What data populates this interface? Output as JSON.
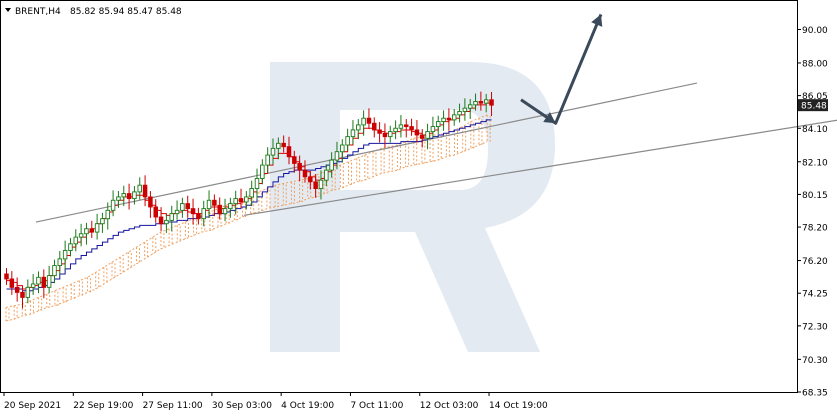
{
  "header": {
    "symbol_label": "BRENT,H4",
    "ohlc": "85.82 85.94 85.47 85.48"
  },
  "colors": {
    "bull_candle": "#1a7a1a",
    "bear_candle": "#cc0000",
    "tenkan": "#dd0000",
    "kijun": "#1414a0",
    "cloud": "#f0a060",
    "channel": "#8a8a8a",
    "forecast_arrow": "#3a4a5a",
    "price_badge": "#222222",
    "watermark": "#dfe6f0"
  },
  "chart_data": {
    "type": "candlestick",
    "price_axis": {
      "min": 68.35,
      "max": 91.7,
      "ticks": [
        "68.35",
        "70.30",
        "72.30",
        "74.25",
        "76.20",
        "78.20",
        "80.15",
        "82.10",
        "84.10",
        "86.05",
        "88.00",
        "90.00"
      ],
      "current_price": "85.48"
    },
    "time_axis": {
      "labels": [
        "20 Sep 2021",
        "22 Sep 19:00",
        "27 Sep 11:00",
        "30 Sep 03:00",
        "4 Oct 19:00",
        "7 Oct 11:00",
        "12 Oct 03:00",
        "14 Oct 19:00"
      ],
      "label_bars": [
        0,
        13,
        26,
        39,
        52,
        65,
        78,
        91
      ],
      "total_bars": 140
    },
    "close": [
      75.1,
      74.6,
      74.3,
      74.0,
      74.6,
      74.8,
      75.2,
      74.6,
      75.3,
      75.9,
      76.3,
      76.8,
      77.2,
      77.6,
      77.8,
      78.1,
      77.9,
      78.4,
      78.7,
      79.2,
      79.8,
      80.0,
      80.2,
      79.9,
      80.3,
      80.7,
      80.0,
      79.4,
      78.8,
      78.4,
      78.6,
      79.0,
      79.2,
      79.6,
      79.3,
      79.0,
      78.7,
      79.3,
      79.8,
      79.5,
      79.0,
      79.3,
      79.6,
      79.9,
      79.7,
      80.0,
      80.5,
      81.1,
      81.9,
      82.5,
      82.9,
      83.2,
      83.0,
      82.4,
      82.0,
      81.6,
      81.2,
      80.9,
      80.5,
      81.0,
      81.6,
      82.2,
      82.7,
      83.1,
      83.6,
      84.0,
      84.3,
      84.7,
      84.4,
      84.0,
      83.8,
      83.6,
      83.9,
      84.1,
      84.3,
      84.2,
      84.0,
      83.7,
      83.5,
      83.9,
      84.2,
      84.5,
      84.7,
      84.6,
      84.9,
      85.1,
      85.3,
      85.5,
      85.7,
      85.6,
      85.8,
      85.48
    ],
    "tenkan": [
      75.0,
      74.9,
      74.7,
      74.5,
      74.6,
      74.7,
      74.9,
      75.0,
      75.3,
      75.6,
      76.0,
      76.5,
      77.0,
      77.3,
      77.6,
      77.9,
      78.1,
      78.4,
      78.7,
      79.1,
      79.5,
      79.8,
      80.0,
      80.0,
      80.1,
      80.1,
      79.8,
      79.5,
      79.2,
      79.0,
      78.9,
      79.0,
      79.1,
      79.2,
      79.1,
      79.0,
      79.0,
      79.2,
      79.4,
      79.4,
      79.3,
      79.4,
      79.5,
      79.6,
      79.7,
      79.9,
      80.3,
      80.8,
      81.4,
      81.9,
      82.3,
      82.6,
      82.6,
      82.4,
      82.1,
      81.8,
      81.5,
      81.2,
      81.0,
      81.1,
      81.5,
      81.9,
      82.3,
      82.7,
      83.1,
      83.5,
      83.8,
      84.1,
      84.1,
      84.0,
      83.9,
      83.8,
      83.8,
      83.9,
      84.0,
      84.0,
      83.9,
      83.8,
      83.7,
      83.8,
      84.0,
      84.3,
      84.5,
      84.6,
      84.7,
      84.9,
      85.1,
      85.3,
      85.5,
      85.5,
      85.6,
      85.5
    ],
    "kijun": [
      74.5,
      74.5,
      74.5,
      74.4,
      74.4,
      74.5,
      74.6,
      74.7,
      74.9,
      75.1,
      75.4,
      75.7,
      76.0,
      76.3,
      76.5,
      76.7,
      76.9,
      77.1,
      77.3,
      77.5,
      77.7,
      77.9,
      78.0,
      78.1,
      78.2,
      78.3,
      78.3,
      78.3,
      78.4,
      78.4,
      78.5,
      78.5,
      78.6,
      78.6,
      78.7,
      78.7,
      78.8,
      78.8,
      78.9,
      79.0,
      79.0,
      79.1,
      79.2,
      79.3,
      79.4,
      79.5,
      79.7,
      80.0,
      80.3,
      80.6,
      80.9,
      81.2,
      81.4,
      81.5,
      81.6,
      81.6,
      81.6,
      81.6,
      81.7,
      81.8,
      81.9,
      82.0,
      82.1,
      82.3,
      82.5,
      82.7,
      82.9,
      83.1,
      83.2,
      83.2,
      83.2,
      83.2,
      83.2,
      83.2,
      83.3,
      83.3,
      83.3,
      83.3,
      83.4,
      83.5,
      83.6,
      83.7,
      83.8,
      83.9,
      84.0,
      84.1,
      84.2,
      84.3,
      84.4,
      84.5,
      84.6,
      84.6
    ],
    "cloud_top": [
      73.4,
      73.5,
      73.6,
      73.8,
      74.0,
      74.2,
      74.4,
      74.6,
      74.8,
      75.0,
      75.2,
      75.5,
      75.8,
      76.1,
      76.4,
      76.7,
      77.0,
      77.3,
      77.6,
      77.9,
      78.1,
      78.3,
      78.5,
      78.7,
      78.9,
      79.1,
      79.3,
      79.5,
      79.7,
      79.9,
      80.1,
      80.3,
      80.5,
      80.7,
      80.8,
      80.9,
      81.0,
      81.1,
      81.3,
      81.5,
      81.7,
      81.9,
      82.1,
      82.3,
      82.5,
      82.7,
      82.9,
      83.0,
      83.1,
      83.3,
      83.5,
      83.6,
      83.7,
      83.7,
      83.8,
      84.0,
      84.2,
      84.5,
      84.7,
      84.9
    ],
    "cloud_bottom": [
      72.6,
      72.7,
      72.9,
      73.0,
      73.2,
      73.4,
      73.5,
      73.7,
      73.9,
      74.1,
      74.3,
      74.5,
      74.8,
      75.1,
      75.4,
      75.7,
      76.0,
      76.3,
      76.6,
      76.9,
      77.1,
      77.3,
      77.5,
      77.7,
      77.9,
      78.0,
      78.2,
      78.4,
      78.6,
      78.8,
      79.0,
      79.1,
      79.3,
      79.4,
      79.5,
      79.6,
      79.7,
      79.9,
      80.0,
      80.2,
      80.4,
      80.5,
      80.7,
      80.9,
      81.0,
      81.2,
      81.4,
      81.5,
      81.6,
      81.8,
      81.9,
      82.0,
      82.1,
      82.2,
      82.4,
      82.5,
      82.7,
      82.9,
      83.1,
      83.3
    ],
    "cloud_start_bar": 0,
    "cloud_step_bars": 1.53,
    "channel": {
      "upper": {
        "from": [
          6,
          78.5
        ],
        "to": [
          130,
          86.8
        ]
      },
      "lower": {
        "from": [
          45,
          78.9
        ],
        "to": [
          190,
          86.3
        ]
      }
    },
    "forecast": [
      [
        97.0,
        85.8
      ],
      [
        103.5,
        84.4
      ],
      [
        112.0,
        90.9
      ]
    ]
  }
}
